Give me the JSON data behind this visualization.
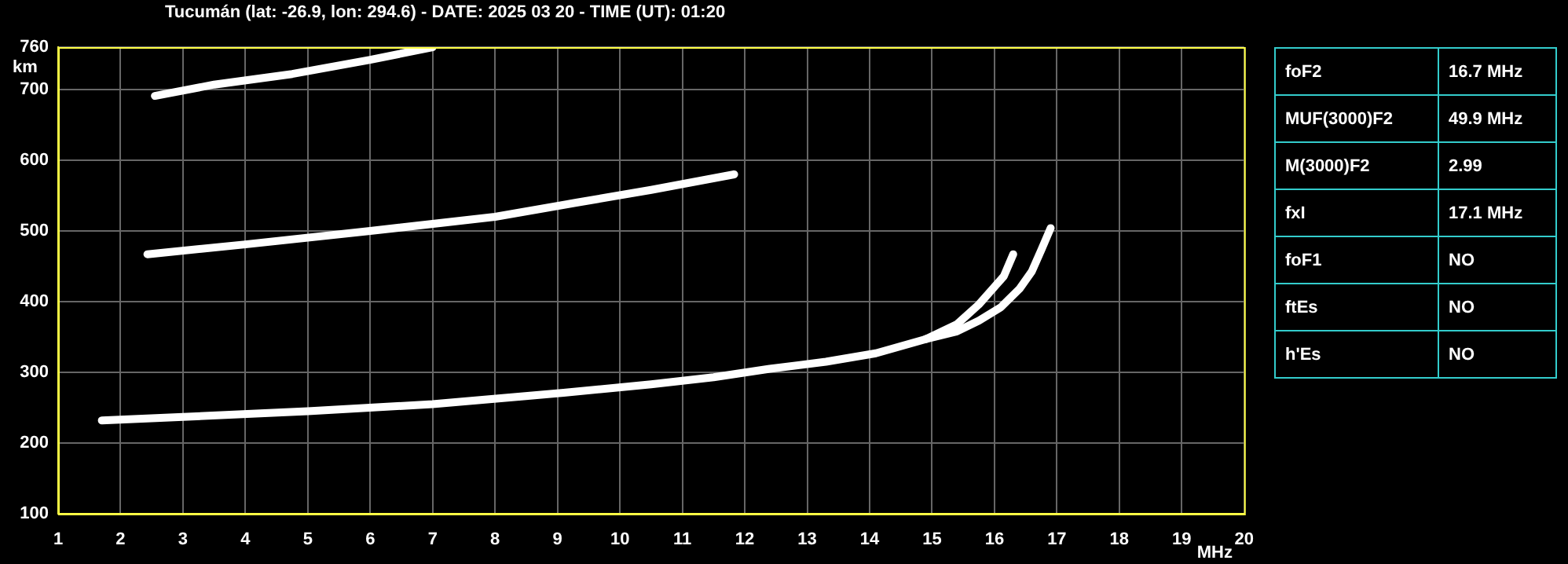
{
  "chart_data": [
    {
      "type": "line",
      "title": "Tucumán (lat: -26.9, lon: 294.6) - DATE: 2025 03 20 - TIME (UT): 01:20",
      "xlabel": "MHz",
      "ylabel": "km",
      "xlim": [
        1,
        20
      ],
      "ylim": [
        100,
        760
      ],
      "xticks": [
        1,
        2,
        3,
        4,
        5,
        6,
        7,
        8,
        9,
        10,
        11,
        12,
        13,
        14,
        15,
        16,
        17,
        18,
        19,
        20
      ],
      "yticks": [
        100,
        200,
        300,
        400,
        500,
        600,
        700,
        760
      ],
      "grid": true,
      "legend": false,
      "marker": "none",
      "line_style": "solid",
      "series": [
        {
          "color": "#ffffff",
          "x": [
            1.7,
            3,
            5,
            7,
            9.1,
            10.5,
            11.5,
            12.4,
            13.3,
            14.1,
            14.9,
            15.4,
            15.75,
            16.15,
            16.3
          ],
          "values": [
            232,
            237,
            245,
            255,
            271,
            283,
            293,
            305,
            315,
            327,
            347,
            368,
            396,
            436,
            467
          ]
        },
        {
          "color": "#ffffff",
          "x": [
            14.9,
            15.4,
            15.75,
            16.1,
            16.4,
            16.6,
            16.75,
            16.9
          ],
          "values": [
            347,
            358,
            373,
            392,
            418,
            443,
            473,
            504
          ]
        },
        {
          "color": "#ffffff",
          "x": [
            2.43,
            4,
            6,
            8,
            9.3,
            10.5,
            11.83
          ],
          "values": [
            467,
            481,
            500,
            520,
            540,
            558,
            580
          ]
        },
        {
          "color": "#ffffff",
          "x": [
            2.55,
            3.5,
            4.75,
            6,
            7
          ],
          "values": [
            691,
            707,
            722,
            742,
            760
          ]
        }
      ]
    },
    {
      "type": "other",
      "annotations": [
        "foF2",
        "16.7 MHz",
        "MUF(3000)F2",
        "49.9 MHz",
        "M(3000)F2",
        "2.99",
        "fxI",
        "17.1 MHz",
        "foF1",
        "NO",
        "ftEs",
        "NO",
        "h'Es",
        "NO"
      ]
    }
  ]
}
